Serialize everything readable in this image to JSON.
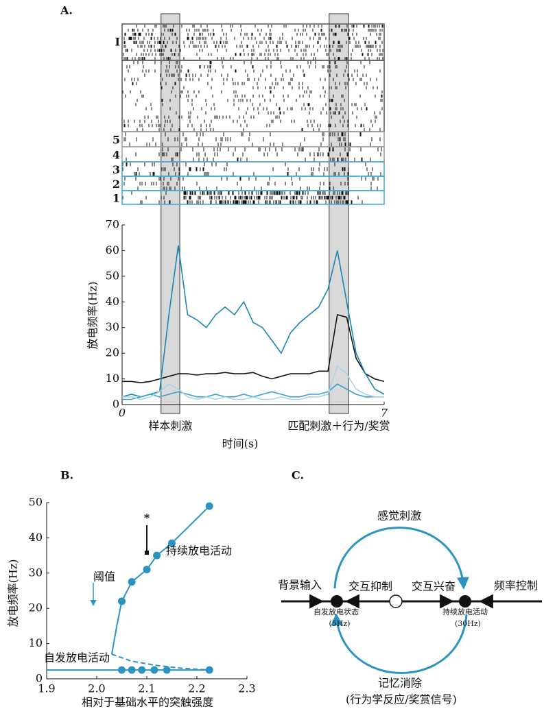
{
  "panel_labels": [
    "A.",
    "B.",
    "C."
  ],
  "raster": {
    "row_labels": [
      "I",
      "5",
      "4",
      "3",
      "2",
      "1"
    ]
  },
  "chart_data": [
    {
      "type": "line",
      "y_label": "放电频率(Hz)",
      "x_label": "时间(s)",
      "xlim": [
        0,
        7
      ],
      "xticks": [
        0,
        7
      ],
      "ylim": [
        0,
        70
      ],
      "yticks": [
        0,
        10,
        20,
        30,
        40,
        50,
        60,
        70
      ],
      "bands": [
        {
          "range": [
            1.04,
            1.54
          ],
          "label": "样本刺激"
        },
        {
          "range": [
            5.53,
            6.05
          ],
          "label": "匹配刺激＋行为/奖赏"
        }
      ],
      "x": [
        0,
        0.25,
        0.5,
        0.75,
        1,
        1.25,
        1.5,
        1.75,
        2,
        2.25,
        2.5,
        2.75,
        3,
        3.25,
        3.5,
        3.75,
        4,
        4.25,
        4.5,
        4.75,
        5,
        5.25,
        5.5,
        5.75,
        6,
        6.25,
        6.5,
        6.75,
        7
      ],
      "series": [
        {
          "color": "#111111",
          "values": [
            9,
            9,
            8.5,
            9,
            10,
            11,
            12,
            12,
            11.5,
            12,
            12,
            12.5,
            12,
            12,
            12.5,
            11,
            10,
            11,
            12,
            12,
            12,
            13,
            13,
            35,
            34,
            18,
            12,
            10,
            9
          ]
        },
        {
          "color": "#1a86b5",
          "values": [
            3,
            4,
            3,
            4,
            5,
            35,
            62,
            35,
            33,
            30,
            35,
            38,
            35,
            40,
            32,
            30,
            25,
            20,
            28,
            32,
            35,
            38,
            45,
            60,
            40,
            20,
            12,
            6,
            4
          ]
        },
        {
          "color": "#3aa0d0",
          "values": [
            2,
            2,
            3,
            4,
            3,
            4,
            5,
            4,
            3,
            3,
            4,
            3,
            3,
            4,
            3,
            4,
            5,
            4,
            3,
            3,
            4,
            4,
            5,
            8,
            6,
            4,
            3,
            3,
            3
          ]
        },
        {
          "color": "#a6d4ec",
          "values": [
            3,
            3,
            2,
            3,
            5,
            8,
            6,
            3,
            2,
            3,
            2,
            3,
            2,
            2,
            3,
            2,
            2,
            3,
            2,
            2,
            3,
            3,
            4,
            15,
            12,
            6,
            4,
            3,
            3
          ]
        }
      ]
    },
    {
      "type": "line",
      "y_label": "放电频率(Hz)",
      "x_label": "相对于基础水平的突触强度",
      "xlim": [
        1.9,
        2.3
      ],
      "xticks": [
        1.9,
        {
          "value": 2,
          "label": "2.0"
        },
        2.1,
        2.2,
        2.3
      ],
      "ylim": [
        0,
        50
      ],
      "yticks": [
        0,
        10,
        20,
        30,
        40,
        50
      ],
      "annotations": [
        "阈值",
        "*",
        "持续放电活动",
        "自发放电活动"
      ],
      "series": [
        {
          "color": "#2a93c0",
          "dash": false,
          "x": [
            2.03,
            2.04,
            2.05,
            2.07,
            2.1,
            2.12,
            2.15,
            2.225
          ],
          "values": [
            7,
            15,
            22,
            27.5,
            31,
            35,
            38.5,
            49
          ],
          "markers": [
            false,
            false,
            true,
            true,
            true,
            true,
            true,
            true
          ]
        },
        {
          "color": "#2a93c0",
          "dash": false,
          "x": [
            1.9,
            2.03,
            2.05,
            2.07,
            2.09,
            2.115,
            2.14,
            2.225
          ],
          "values": [
            2.5,
            2.5,
            2.5,
            2.5,
            2.5,
            2.5,
            2.5,
            2.5
          ],
          "markers": [
            false,
            false,
            true,
            true,
            true,
            true,
            true,
            true
          ]
        },
        {
          "color": "#2a93c0",
          "dash": true,
          "x": [
            2.03,
            2.07,
            2.12,
            2.17,
            2.225
          ],
          "values": [
            7,
            5,
            3.8,
            3,
            2.5
          ],
          "markers": [
            false,
            false,
            false,
            false,
            false
          ]
        }
      ]
    }
  ],
  "diagram": {
    "top": "感觉刺激",
    "left": "背景输入",
    "inhibition": "交互抑制",
    "excitation": "交互兴奋",
    "right": "频率控制",
    "state_low": "自发放电状态",
    "state_low_rate": "(5Hz)",
    "state_high": "持续放电活动",
    "state_high_rate": "(30Hz)",
    "bottom": "记忆消除",
    "bottom_note": "(行为学反应/奖赏信号)"
  }
}
